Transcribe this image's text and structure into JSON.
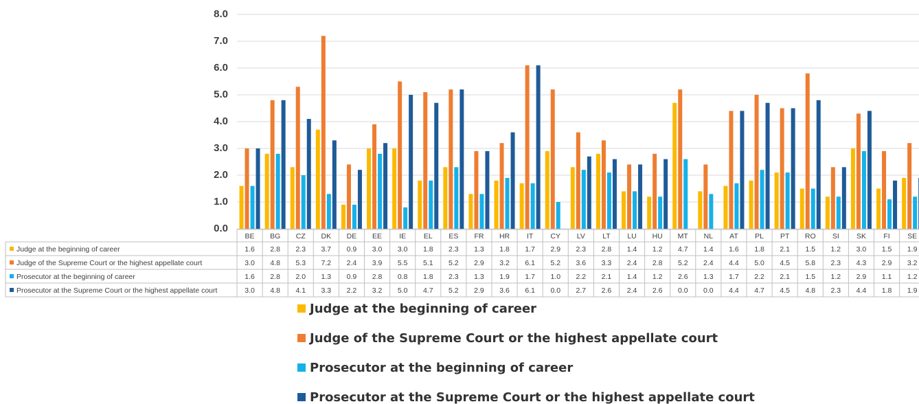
{
  "chart_data": {
    "type": "bar",
    "categories": [
      "BE",
      "BG",
      "CZ",
      "DK",
      "DE",
      "EE",
      "IE",
      "EL",
      "ES",
      "FR",
      "HR",
      "IT",
      "CY",
      "LV",
      "LT",
      "LU",
      "HU",
      "MT",
      "NL",
      "AT",
      "PL",
      "PT",
      "RO",
      "SI",
      "SK",
      "FI",
      "SE"
    ],
    "series": [
      {
        "name": "Judge at the beginning of career",
        "color": "#fbb900",
        "values": [
          1.6,
          2.8,
          2.3,
          3.7,
          0.9,
          3.0,
          3.0,
          1.8,
          2.3,
          1.3,
          1.8,
          1.7,
          2.9,
          2.3,
          2.8,
          1.4,
          1.2,
          4.7,
          1.4,
          1.6,
          1.8,
          2.1,
          1.5,
          1.2,
          3.0,
          1.5,
          1.9
        ],
        "value_labels": [
          "1.6",
          "2.8",
          "2.3",
          "3.7",
          "0.9",
          "3.0",
          "3.0",
          "1.8",
          "2.3",
          "1.3",
          "1.8",
          "1.7",
          "2.9",
          "2.3",
          "2.8",
          "1.4",
          "1.2",
          "4.7",
          "1.4",
          "1.6",
          "1.8",
          "2.1",
          "1.5",
          "1.2",
          "3.0",
          "1.5",
          "1.9"
        ]
      },
      {
        "name": "Judge of the Supreme Court or the highest appellate court",
        "color": "#ee7d31",
        "values": [
          3.0,
          4.8,
          5.3,
          7.2,
          2.4,
          3.9,
          5.5,
          5.1,
          5.2,
          2.9,
          3.2,
          6.1,
          5.2,
          3.6,
          3.3,
          2.4,
          2.8,
          5.2,
          2.4,
          4.4,
          5.0,
          4.5,
          5.8,
          2.3,
          4.3,
          2.9,
          3.2
        ],
        "value_labels": [
          "3.0",
          "4.8",
          "5.3",
          "7.2",
          "2.4",
          "3.9",
          "5.5",
          "5.1",
          "5.2",
          "2.9",
          "3.2",
          "6.1",
          "5.2",
          "3.6",
          "3.3",
          "2.4",
          "2.8",
          "5.2",
          "2.4",
          "4.4",
          "5.0",
          "4.5",
          "5.8",
          "2.3",
          "4.3",
          "2.9",
          "3.2"
        ]
      },
      {
        "name": "Prosecutor at the beginning of career",
        "color": "#16b1e9",
        "values": [
          1.6,
          2.8,
          2.0,
          1.3,
          0.9,
          2.8,
          0.8,
          1.8,
          2.3,
          1.3,
          1.9,
          1.7,
          1.0,
          2.2,
          2.1,
          1.4,
          1.2,
          2.6,
          1.3,
          1.7,
          2.2,
          2.1,
          1.5,
          1.2,
          2.9,
          1.1,
          1.2
        ],
        "value_labels": [
          "1.6",
          "2.8",
          "2.0",
          "1.3",
          "0.9",
          "2.8",
          "0.8",
          "1.8",
          "2.3",
          "1.3",
          "1.9",
          "1.7",
          "1.0",
          "2.2",
          "2.1",
          "1.4",
          "1.2",
          "2.6",
          "1.3",
          "1.7",
          "2.2",
          "2.1",
          "1.5",
          "1.2",
          "2.9",
          "1.1",
          "1.2"
        ]
      },
      {
        "name": "Prosecutor at the Supreme Court or the highest appellate court",
        "color": "#1f5b98",
        "values": [
          3.0,
          4.8,
          4.1,
          3.3,
          2.2,
          3.2,
          5.0,
          4.7,
          5.2,
          2.9,
          3.6,
          6.1,
          0.0,
          2.7,
          2.6,
          2.4,
          2.6,
          0.0,
          0.0,
          4.4,
          4.7,
          4.5,
          4.8,
          2.3,
          4.4,
          1.8,
          1.9
        ],
        "value_labels": [
          "3.0",
          "4.8",
          "4.1",
          "3.3",
          "2.2",
          "3.2",
          "5.0",
          "4.7",
          "5.2",
          "2.9",
          "3.6",
          "6.1",
          "0.0",
          "2.7",
          "2.6",
          "2.4",
          "2.6",
          "0.0",
          "0.0",
          "4.4",
          "4.7",
          "4.5",
          "4.8",
          "2.3",
          "4.4",
          "1.8",
          "1.9"
        ]
      }
    ],
    "ylim": [
      0,
      8
    ],
    "yticks": [
      {
        "value": 0,
        "label": "0.0"
      },
      {
        "value": 1,
        "label": "1.0"
      },
      {
        "value": 2,
        "label": "2.0"
      },
      {
        "value": 3,
        "label": "3.0"
      },
      {
        "value": 4,
        "label": "4.0"
      },
      {
        "value": 5,
        "label": "5.0"
      },
      {
        "value": 6,
        "label": "6.0"
      },
      {
        "value": 7,
        "label": "7.0"
      },
      {
        "value": 8,
        "label": "8.0"
      }
    ],
    "grid": true
  }
}
